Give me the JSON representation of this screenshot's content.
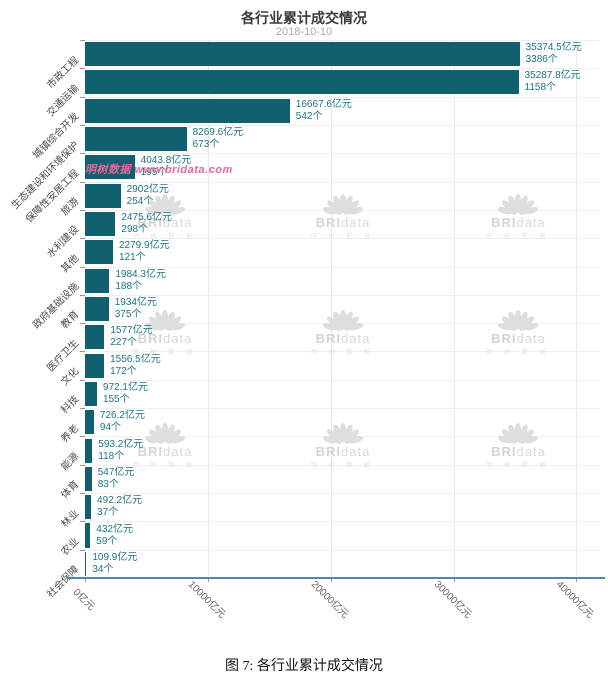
{
  "header": {
    "title": "各行业累计成交情况",
    "subtitle": "2018-10-10"
  },
  "caption": "图 7:  各行业累计成交情况",
  "watermark": {
    "pink_text": "明树数据 www.bridata.com",
    "pink_color": "#e4679e",
    "logo_bold": "BRI",
    "logo_light": "data",
    "logo_sub": "明 树 数 据"
  },
  "chart_data": {
    "type": "bar",
    "orientation": "horizontal",
    "title": "各行业累计成交情况",
    "subtitle": "2018-10-10",
    "value_unit": "亿元",
    "count_unit": "个",
    "x_ticks": [
      "0亿元",
      "10000亿元",
      "20000亿元",
      "30000亿元",
      "40000亿元"
    ],
    "x_tick_values": [
      0,
      10000,
      20000,
      30000,
      40000
    ],
    "xlim": [
      0,
      40000
    ],
    "axis_render_max": 42000,
    "grid": true,
    "bar_color": "#11606f",
    "value_label_color": "#1b7484",
    "axis_line_color": "#4d86c5",
    "bars": [
      {
        "category": "市政工程",
        "value": 35374.5,
        "count": 3386,
        "value_label": "35374.5亿元",
        "count_label": "3386个"
      },
      {
        "category": "交通运输",
        "value": 35287.8,
        "count": 1158,
        "value_label": "35287.8亿元",
        "count_label": "1158个"
      },
      {
        "category": "城镇综合开发",
        "value": 16667.6,
        "count": 542,
        "value_label": "16667.6亿元",
        "count_label": "542个"
      },
      {
        "category": "生态建设和环境保护",
        "value": 8269.6,
        "count": 673,
        "value_label": "8269.6亿元",
        "count_label": "673个"
      },
      {
        "category": "保障性安居工程",
        "value": 4043.8,
        "count": 195,
        "value_label": "4043.8亿元",
        "count_label": "195个"
      },
      {
        "category": "旅游",
        "value": 2902,
        "count": 254,
        "value_label": "2902亿元",
        "count_label": "254个"
      },
      {
        "category": "水利建设",
        "value": 2475.6,
        "count": 298,
        "value_label": "2475.6亿元",
        "count_label": "298个"
      },
      {
        "category": "其他",
        "value": 2279.9,
        "count": 121,
        "value_label": "2279.9亿元",
        "count_label": "121个"
      },
      {
        "category": "政府基础设施",
        "value": 1984.3,
        "count": 188,
        "value_label": "1984.3亿元",
        "count_label": "188个"
      },
      {
        "category": "教育",
        "value": 1934,
        "count": 375,
        "value_label": "1934亿元",
        "count_label": "375个"
      },
      {
        "category": "医疗卫生",
        "value": 1577,
        "count": 227,
        "value_label": "1577亿元",
        "count_label": "227个"
      },
      {
        "category": "文化",
        "value": 1556.5,
        "count": 172,
        "value_label": "1556.5亿元",
        "count_label": "172个"
      },
      {
        "category": "科技",
        "value": 972.1,
        "count": 155,
        "value_label": "972.1亿元",
        "count_label": "155个"
      },
      {
        "category": "养老",
        "value": 726.2,
        "count": 94,
        "value_label": "726.2亿元",
        "count_label": "94个"
      },
      {
        "category": "能源",
        "value": 593.2,
        "count": 118,
        "value_label": "593.2亿元",
        "count_label": "118个"
      },
      {
        "category": "体育",
        "value": 547,
        "count": 83,
        "value_label": "547亿元",
        "count_label": "83个"
      },
      {
        "category": "林业",
        "value": 492.2,
        "count": 37,
        "value_label": "492.2亿元",
        "count_label": "37个"
      },
      {
        "category": "农业",
        "value": 432,
        "count": 59,
        "value_label": "432亿元",
        "count_label": "59个"
      },
      {
        "category": "社会保障",
        "value": 109.9,
        "count": 34,
        "value_label": "109.9亿元",
        "count_label": "34个"
      }
    ],
    "legend": null,
    "watermark_grid": {
      "cols_pct": [
        15.5,
        50,
        84
      ],
      "rows_pct": [
        32.5,
        54,
        75
      ]
    }
  }
}
